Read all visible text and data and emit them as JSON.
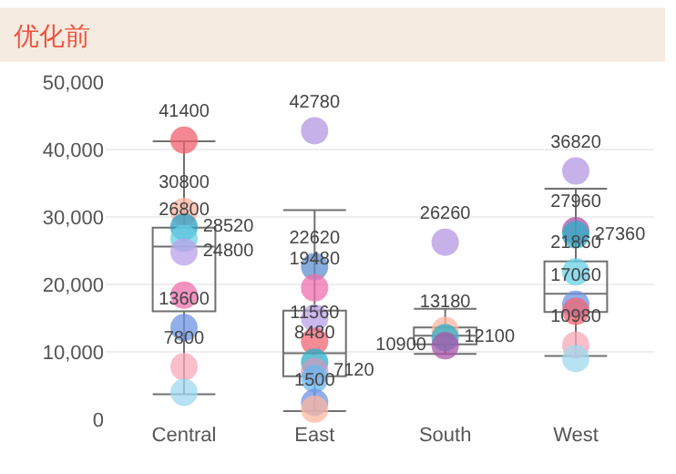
{
  "chart_data": {
    "type": "box",
    "title": "优化前",
    "categories": [
      "Central",
      "East",
      "South",
      "West"
    ],
    "boxes": [
      {
        "low": 3700,
        "q1": 16000,
        "median": 25600,
        "q3": 28400,
        "high": 41200
      },
      {
        "low": 1200,
        "q1": 6400,
        "median": 9800,
        "q3": 16100,
        "high": 31000
      },
      {
        "low": 9700,
        "q1": 11100,
        "median": 12400,
        "q3": 13600,
        "high": 16400
      },
      {
        "low": 9400,
        "q1": 15900,
        "median": 18600,
        "q3": 23400,
        "high": 34200
      }
    ],
    "color": "#707070",
    "series": [
      {
        "type": "scatter",
        "x": [
          "Central",
          "Central",
          "Central",
          "Central",
          "Central",
          "Central",
          "Central",
          "Central",
          "Central",
          "East",
          "East",
          "East",
          "East",
          "East",
          "East",
          "East",
          "East",
          "East",
          "East",
          "South",
          "South",
          "South",
          "South",
          "West",
          "West",
          "West",
          "West",
          "West",
          "West",
          "West",
          "West"
        ],
        "values": [
          41400,
          30800,
          28520,
          26800,
          24800,
          18400,
          13600,
          7800,
          4000,
          42780,
          22620,
          19480,
          15000,
          11560,
          8480,
          7120,
          6000,
          2500,
          1500,
          26260,
          13180,
          12100,
          10900,
          36820,
          27960,
          27360,
          21860,
          17060,
          16000,
          10980,
          9000
        ],
        "value_labels": [
          "41400",
          "30800",
          "28520",
          "26800",
          "24800",
          null,
          "13600",
          "7800",
          null,
          "42780",
          "22620",
          "19480",
          null,
          "11560",
          "8480",
          "7120",
          null,
          null,
          "1500",
          "26260",
          "13180",
          "12100",
          "10900",
          "36820",
          "27960",
          "27360",
          "21860",
          "17060",
          null,
          "10980",
          null
        ],
        "colors": [
          "#f0606e",
          "#ffb6a0",
          "#2a9fc4",
          "#6ad0e6",
          "#b9a0e8",
          "#ef6fae",
          "#6e94e6",
          "#f7a8b8",
          "#9fd8f0",
          "#b397e0",
          "#5f8fd0",
          "#ef6fae",
          "#b9a0e8",
          "#f26470",
          "#2ab0c8",
          "#c99bc0",
          "#6ab8f0",
          "#6e94e6",
          "#ffb6a0",
          "#b397e0",
          "#ffb6a0",
          "#2ab0c8",
          "#a855a8",
          "#b397e0",
          "#a855a8",
          "#2ab0c8",
          "#6ad0e6",
          "#6e94e6",
          "#f26470",
          "#f7a8b8",
          "#9fd8f0"
        ]
      }
    ],
    "ylim": [
      0,
      50000
    ],
    "yticks": [
      {
        "value": 0,
        "label": "0"
      },
      {
        "value": 10000,
        "label": "10,000"
      },
      {
        "value": 20000,
        "label": "20,000"
      },
      {
        "value": 30000,
        "label": "30,000"
      },
      {
        "value": 40000,
        "label": "40,000"
      },
      {
        "value": 50000,
        "label": "50,000"
      }
    ],
    "grid": "y"
  }
}
